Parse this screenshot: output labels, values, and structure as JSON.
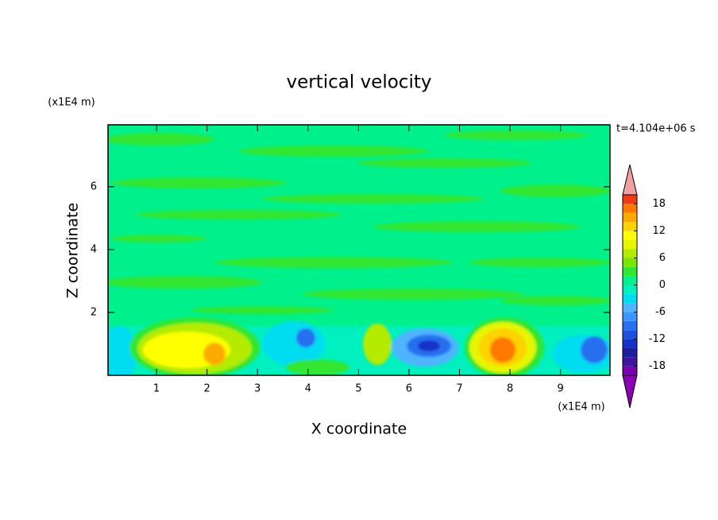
{
  "chart_data": {
    "type": "contour",
    "title": "vertical velocity",
    "x_label": "X coordinate",
    "y_label": "Z coordinate",
    "x_unit": "(x1E4 m)",
    "y_unit": "(x1E4 m)",
    "annotation": "t=4.104e+06 s",
    "xlim": [
      0.04,
      9.98
    ],
    "ylim": [
      0,
      7.97
    ],
    "xticks": [
      1,
      2,
      3,
      4,
      5,
      6,
      7,
      8,
      9
    ],
    "yticks": [
      2,
      4,
      6
    ],
    "colorbar": {
      "levels": [
        -20,
        -18,
        -16,
        -14,
        -12,
        -10,
        -8,
        -6,
        -4,
        -2,
        0,
        2,
        4,
        6,
        8,
        10,
        12,
        14,
        16,
        18,
        20
      ],
      "colors": [
        "#7800b0",
        "#3c14a0",
        "#1e1e9c",
        "#1432c8",
        "#1e50dc",
        "#2870f0",
        "#3c96ff",
        "#50b4ff",
        "#00dcf0",
        "#00f0c0",
        "#00f08c",
        "#32e632",
        "#78e600",
        "#b4eb00",
        "#e6f500",
        "#ffff00",
        "#ffd200",
        "#ffaa00",
        "#ff7800",
        "#f03c14"
      ],
      "under_color": "#8c00b4",
      "over_color": "#f0a0a0",
      "ticks": [
        -18,
        -12,
        -6,
        0,
        6,
        12,
        18
      ]
    }
  }
}
